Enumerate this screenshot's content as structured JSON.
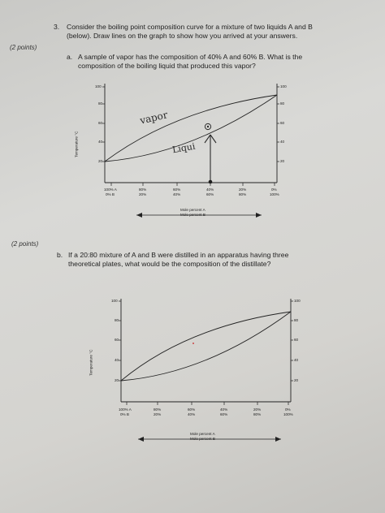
{
  "question": {
    "number": "3.",
    "line1": "Consider the boiling point composition curve for a mixture of two liquids A and B",
    "line2": "(below). Draw lines on the graph to show how you arrived at your answers."
  },
  "part_a": {
    "points": "(2 points)",
    "letter": "a.",
    "line1": "A sample of vapor has the composition of 40% A and 60% B. What is the",
    "line2": "composition of the boiling liquid that produced this vapor?"
  },
  "part_b": {
    "points": "(2 points)",
    "letter": "b.",
    "line1": "If a 20:80 mixture of A and B were distilled in an apparatus having three",
    "line2": "theoretical plates, what would be the composition of the distillate?"
  },
  "graph": {
    "y_axis_label": "Temperature °C",
    "y_ticks": [
      "100",
      "80",
      "60",
      "40",
      "20"
    ],
    "x_ticks_a": [
      "100% A",
      "80%",
      "60%",
      "40%",
      "20%",
      "0%"
    ],
    "x_ticks_b": [
      "0% B",
      "20%",
      "40%",
      "60%",
      "80%",
      "100%"
    ],
    "arrow_label_1": "Mole percent A",
    "arrow_label_2": "Mole percent B"
  },
  "annotations": {
    "vapor": "vapor",
    "liquid": "Liqui"
  },
  "colors": {
    "ink": "#1e1e1e",
    "pencil": "#2b2b2b"
  }
}
